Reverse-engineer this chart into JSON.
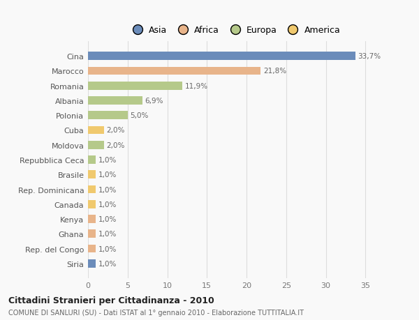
{
  "categories": [
    "Cina",
    "Marocco",
    "Romania",
    "Albania",
    "Polonia",
    "Cuba",
    "Moldova",
    "Repubblica Ceca",
    "Brasile",
    "Rep. Dominicana",
    "Canada",
    "Kenya",
    "Ghana",
    "Rep. del Congo",
    "Siria"
  ],
  "values": [
    33.7,
    21.8,
    11.9,
    6.9,
    5.0,
    2.0,
    2.0,
    1.0,
    1.0,
    1.0,
    1.0,
    1.0,
    1.0,
    1.0,
    1.0
  ],
  "colors": [
    "#6b8cba",
    "#e8b48a",
    "#b5c98a",
    "#b5c98a",
    "#b5c98a",
    "#f0c96e",
    "#b5c98a",
    "#b5c98a",
    "#f0c96e",
    "#f0c96e",
    "#f0c96e",
    "#e8b48a",
    "#e8b48a",
    "#e8b48a",
    "#6b8cba"
  ],
  "labels": [
    "33,7%",
    "21,8%",
    "11,9%",
    "6,9%",
    "5,0%",
    "2,0%",
    "2,0%",
    "1,0%",
    "1,0%",
    "1,0%",
    "1,0%",
    "1,0%",
    "1,0%",
    "1,0%",
    "1,0%"
  ],
  "legend_labels": [
    "Asia",
    "Africa",
    "Europa",
    "America"
  ],
  "legend_colors": [
    "#6b8cba",
    "#e8b48a",
    "#b5c98a",
    "#f0c96e"
  ],
  "title": "Cittadini Stranieri per Cittadinanza - 2010",
  "subtitle": "COMUNE DI SANLURI (SU) - Dati ISTAT al 1° gennaio 2010 - Elaborazione TUTTITALIA.IT",
  "xlim": [
    0,
    37
  ],
  "background_color": "#f9f9f9",
  "grid_color": "#dddddd"
}
